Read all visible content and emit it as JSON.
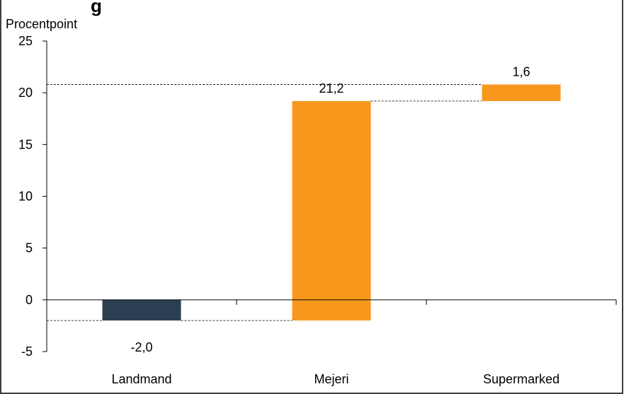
{
  "header": {
    "cropped_title": "g"
  },
  "chart_data": {
    "type": "bar",
    "subtype": "waterfall",
    "ylabel": "Procentpoint",
    "ylim": [
      -5,
      25
    ],
    "yticks": [
      25,
      20,
      15,
      10,
      5,
      0,
      -5
    ],
    "ytick_labels": [
      "25",
      "20",
      "15",
      "10",
      "5",
      "0",
      "-5"
    ],
    "categories": [
      "Landmand",
      "Mejeri",
      "Supermarked"
    ],
    "values": [
      -2.0,
      21.2,
      1.6
    ],
    "bar_starts": [
      0,
      -2.0,
      19.2
    ],
    "bar_ends": [
      -2.0,
      19.2,
      20.8
    ],
    "value_labels": [
      "-2,0",
      "21,2",
      "1,6"
    ],
    "colors": [
      "#2B3F52",
      "#F7981D",
      "#F7981D"
    ],
    "grid": false,
    "legend": "none"
  }
}
